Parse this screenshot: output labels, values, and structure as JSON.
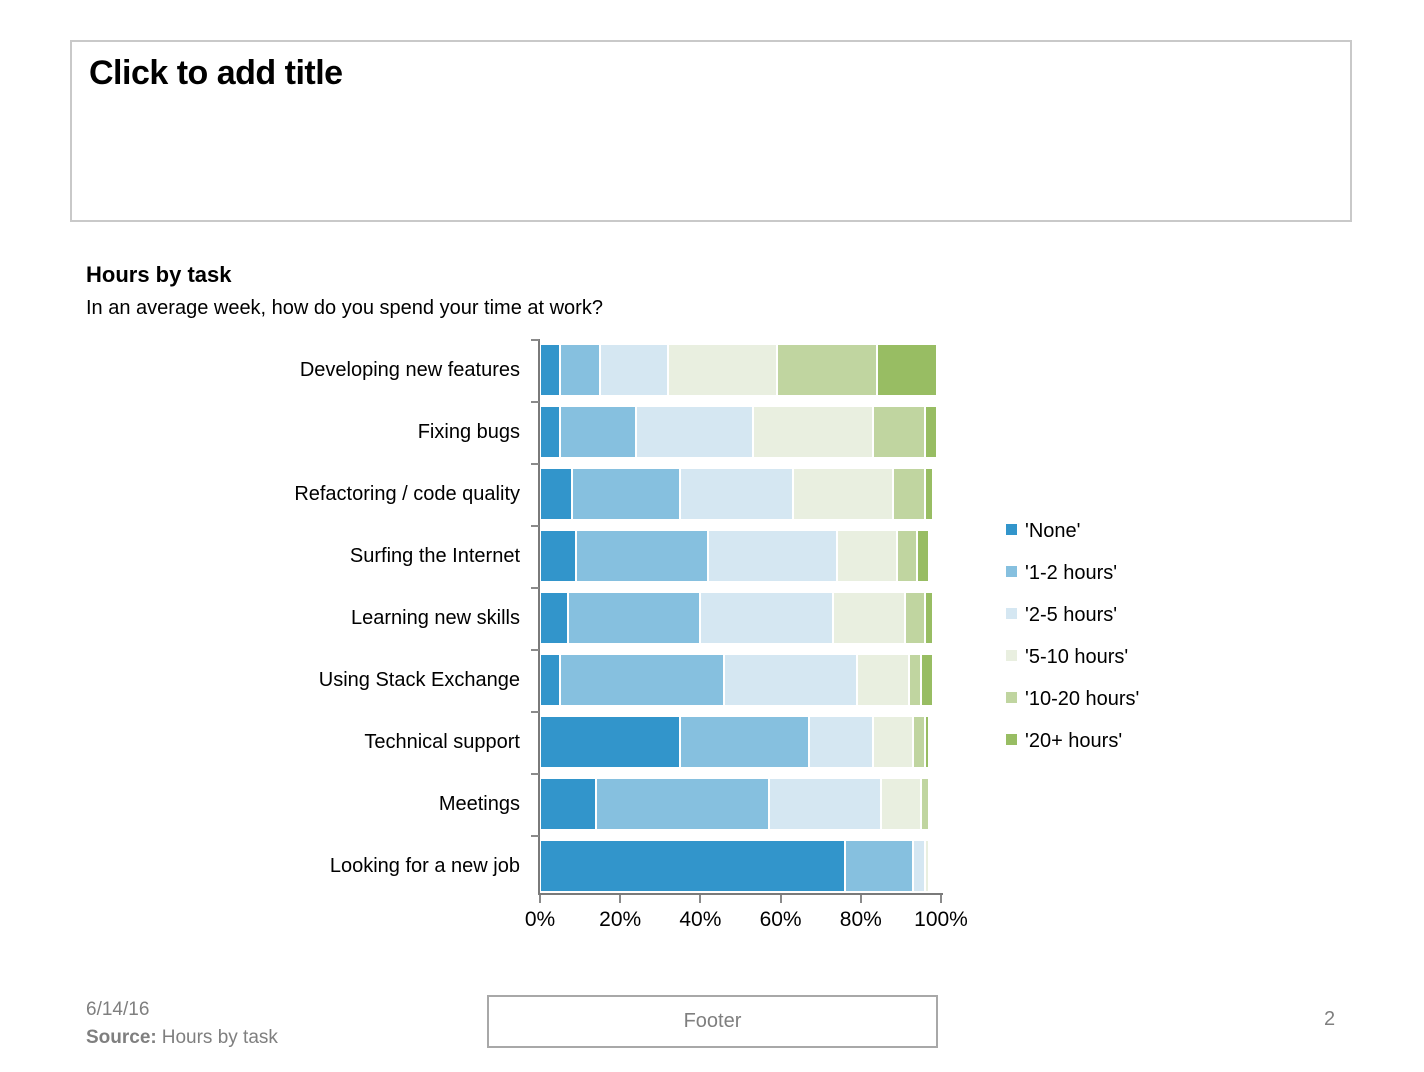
{
  "slide": {
    "title_placeholder": "Click to add title",
    "date": "6/14/16",
    "source_label": "Source:",
    "source_text": "Hours by task",
    "footer": "Footer",
    "page_number": "2"
  },
  "chart_data": {
    "type": "bar",
    "orientation": "horizontal",
    "stacked": true,
    "title": "Hours by task",
    "subtitle": "In an average week, how do you spend your time at work?",
    "categories": [
      "Developing new features",
      "Fixing bugs",
      "Refactoring / code quality",
      "Surfing the Internet",
      "Learning new skills",
      "Using Stack Exchange",
      "Technical support",
      "Meetings",
      "Looking for a new job"
    ],
    "series": [
      {
        "name": "'None'",
        "color": "#3295cb",
        "values": [
          5,
          5,
          8,
          9,
          7,
          5,
          35,
          14,
          76
        ]
      },
      {
        "name": "'1-2 hours'",
        "color": "#86c0df",
        "values": [
          10,
          19,
          27,
          33,
          33,
          41,
          32,
          43,
          17
        ]
      },
      {
        "name": "'2-5 hours'",
        "color": "#d5e7f2",
        "values": [
          17,
          29,
          28,
          32,
          33,
          33,
          16,
          28,
          3
        ]
      },
      {
        "name": "'5-10 hours'",
        "color": "#e9efe0",
        "values": [
          27,
          30,
          25,
          15,
          18,
          13,
          10,
          10,
          1
        ]
      },
      {
        "name": "'10-20 hours'",
        "color": "#c0d5a0",
        "values": [
          25,
          13,
          8,
          5,
          5,
          3,
          3,
          2,
          0
        ]
      },
      {
        "name": "'20+ hours'",
        "color": "#98bd63",
        "values": [
          15,
          3,
          2,
          3,
          2,
          3,
          1,
          0,
          0
        ]
      }
    ],
    "x_axis": {
      "ticks": [
        "0%",
        "20%",
        "40%",
        "60%",
        "80%",
        "100%"
      ],
      "range": [
        0,
        100
      ]
    },
    "xlabel": "",
    "ylabel": "",
    "legend_position": "right",
    "grid": false
  }
}
